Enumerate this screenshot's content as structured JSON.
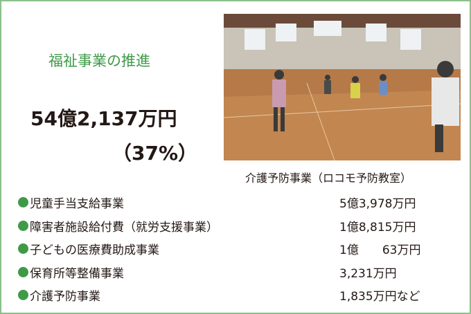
{
  "title": "福祉事業の推進",
  "total": "54億2,137万円",
  "share": "（37%）",
  "photo": {
    "caption": "介護予防事業（ロコモ予防教室）"
  },
  "items": [
    {
      "name": "児童手当支給事業",
      "amount": "5億3,978万円"
    },
    {
      "name": "障害者施設給付費（就労支援事業）",
      "amount": "1億8,815万円"
    },
    {
      "name": "子どもの医療費助成事業",
      "amount": "1億　　63万円"
    },
    {
      "name": "保育所等整備事業",
      "amount": "3,231万円"
    },
    {
      "name": "介護予防事業",
      "amount": "1,835万円など"
    }
  ]
}
